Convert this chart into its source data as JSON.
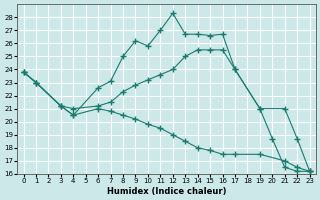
{
  "xlabel": "Humidex (Indice chaleur)",
  "bg_color": "#cce8e8",
  "grid_color": "#ffffff",
  "line_color": "#1a7a6e",
  "ylim": [
    16,
    29
  ],
  "xlim": [
    -0.5,
    23.5
  ],
  "yticks": [
    16,
    17,
    18,
    19,
    20,
    21,
    22,
    23,
    24,
    25,
    26,
    27,
    28
  ],
  "xticks": [
    0,
    1,
    2,
    3,
    4,
    5,
    6,
    7,
    8,
    9,
    10,
    11,
    12,
    13,
    14,
    15,
    16,
    17,
    18,
    19,
    20,
    21,
    22,
    23
  ],
  "line1_x": [
    0,
    1,
    3,
    4,
    6,
    7,
    8,
    9,
    10,
    11,
    12,
    13,
    14,
    15,
    16,
    17,
    19,
    20,
    21,
    22,
    23
  ],
  "line1_y": [
    23.8,
    23.0,
    21.2,
    20.5,
    22.6,
    23.1,
    25.0,
    26.2,
    25.8,
    27.0,
    28.3,
    26.7,
    26.7,
    26.6,
    26.7,
    24.0,
    21.0,
    18.7,
    16.5,
    16.2,
    16.2
  ],
  "line2_x": [
    0,
    1,
    3,
    4,
    6,
    7,
    8,
    9,
    10,
    11,
    12,
    13,
    14,
    15,
    16,
    17,
    19,
    21,
    22,
    23
  ],
  "line2_y": [
    23.8,
    23.0,
    21.2,
    21.0,
    21.2,
    21.5,
    22.3,
    22.8,
    23.2,
    23.6,
    24.0,
    25.0,
    25.5,
    25.5,
    25.5,
    24.0,
    21.0,
    21.0,
    18.7,
    16.2
  ],
  "line3_x": [
    0,
    1,
    3,
    4,
    6,
    7,
    8,
    9,
    10,
    11,
    12,
    13,
    14,
    15,
    16,
    17,
    19,
    21,
    22,
    23
  ],
  "line3_y": [
    23.8,
    23.0,
    21.2,
    20.5,
    21.0,
    20.8,
    20.5,
    20.2,
    19.8,
    19.5,
    19.0,
    18.5,
    18.0,
    17.8,
    17.5,
    17.5,
    17.5,
    17.0,
    16.5,
    16.2
  ]
}
